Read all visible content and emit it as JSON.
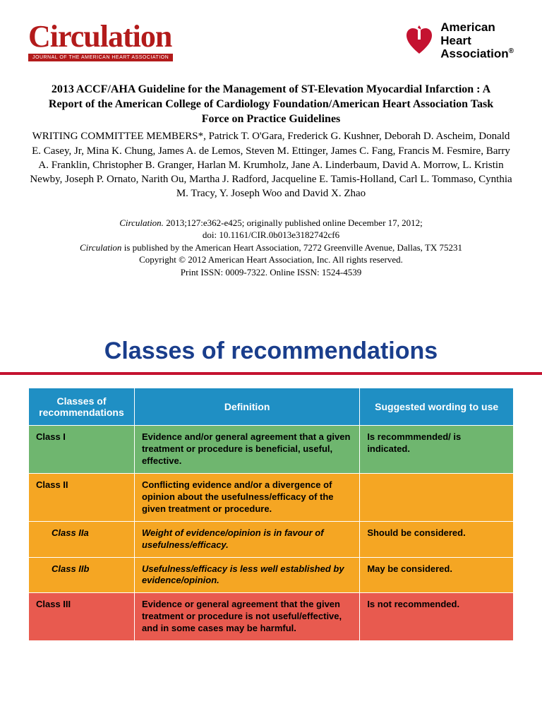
{
  "masthead": {
    "journal_name": "Circulation",
    "journal_tagline": "JOURNAL OF THE AMERICAN HEART ASSOCIATION",
    "aha_line1": "American",
    "aha_line2": "Heart",
    "aha_line3": "Association"
  },
  "article": {
    "title": "2013 ACCF/AHA Guideline for the Management of ST-Elevation Myocardial Infarction : A Report of the American College of Cardiology Foundation/American Heart Association Task Force on Practice Guidelines",
    "authors": "WRITING COMMITTEE MEMBERS*, Patrick T. O'Gara, Frederick G. Kushner, Deborah D. Ascheim, Donald E. Casey, Jr, Mina K. Chung, James A. de Lemos, Steven M. Ettinger, James C. Fang, Francis M. Fesmire, Barry A. Franklin, Christopher B. Granger, Harlan M. Krumholz, Jane A. Linderbaum, David A. Morrow, L. Kristin Newby, Joseph P. Ornato, Narith Ou, Martha J. Radford, Jacqueline E. Tamis-Holland, Carl L. Tommaso, Cynthia M. Tracy, Y. Joseph Woo and David X. Zhao"
  },
  "citation": {
    "line1_ital": "Circulation.",
    "line1_rest": " 2013;127:e362-e425; originally published online December 17, 2012;",
    "line2": "doi: 10.1161/CIR.0b013e3182742cf6",
    "line3_ital": "Circulation",
    "line3_rest": " is published by the American Heart Association, 7272 Greenville Avenue, Dallas, TX 75231",
    "line4": "Copyright © 2012 American Heart Association, Inc. All rights reserved.",
    "line5": "Print ISSN: 0009-7322. Online ISSN: 1524-4539"
  },
  "slide": {
    "title": "Classes of recommendations",
    "table": {
      "headers": {
        "class": "Classes of recommendations",
        "definition": "Definition",
        "suggested": "Suggested wording to use"
      },
      "rows": [
        {
          "color": "green",
          "indent": false,
          "class_label": "Class I",
          "definition": "Evidence and/or general agreement that a given treatment or procedure is beneficial, useful, effective.",
          "suggested": "Is recommmended/ is indicated.",
          "def_italic": false
        },
        {
          "color": "orange",
          "indent": false,
          "class_label": "Class II",
          "definition": "Conflicting evidence and/or a divergence of opinion about the usefulness/efficacy of the given treatment or procedure.",
          "suggested": "",
          "def_italic": false
        },
        {
          "color": "orange",
          "indent": true,
          "class_label": "Class IIa",
          "definition": "Weight of evidence/opinion is in favour of usefulness/efficacy.",
          "suggested": "Should be considered.",
          "def_italic": true
        },
        {
          "color": "orange",
          "indent": true,
          "class_label": "Class IIb",
          "definition": "Usefulness/efficacy is less well established by evidence/opinion.",
          "suggested": "May be considered.",
          "def_italic": true
        },
        {
          "color": "red",
          "indent": false,
          "class_label": "Class III",
          "definition": "Evidence or general agreement that the given treatment or procedure is not useful/effective, and in some cases may be harmful.",
          "suggested": "Is not recommended.",
          "def_italic": false
        }
      ]
    }
  },
  "colors": {
    "brand_red": "#b31b1b",
    "rule_red": "#c41230",
    "title_blue": "#1a3e8c",
    "header_blue": "#1f8fc4",
    "row_green": "#6fb66f",
    "row_orange": "#f5a623",
    "row_red": "#e85a4f"
  }
}
